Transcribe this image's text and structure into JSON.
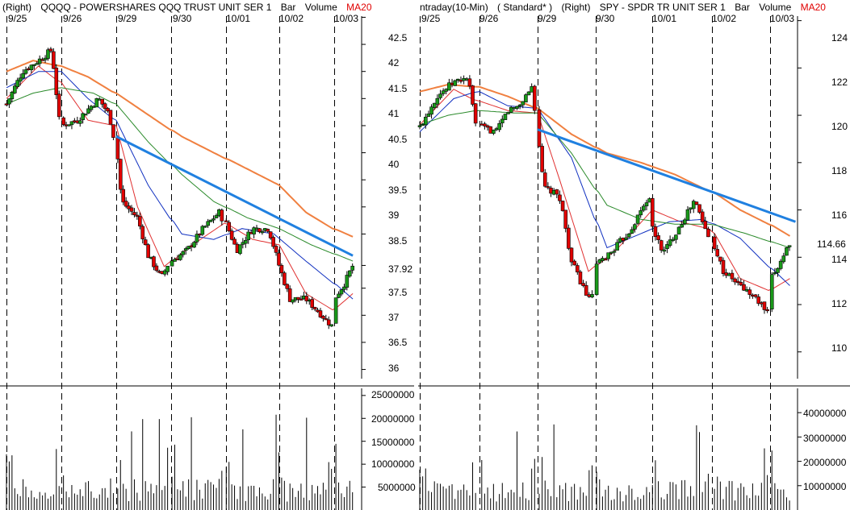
{
  "left_panel": {
    "header": {
      "right": "(Right)",
      "symbol": "QQQQ - POWERSHARES QQQ TRUST UNIT SER 1",
      "bar": "Bar",
      "volume": "Volume",
      "ma": "MA20"
    }
  },
  "right_panel": {
    "header": {
      "interval": "ntraday(10-Min)",
      "mode": "( Standard* )",
      "right": "(Right)",
      "symbol": "SPY - SPDR TR UNIT SER 1",
      "bar": "Bar",
      "volume": "Volume",
      "ma": "MA20"
    }
  },
  "colors": {
    "up_candle": "#1a9a1a",
    "down_candle": "#e00000",
    "ma_orange": "#f08040",
    "ma_green": "#2a8a2a",
    "ma_blue": "#1030c0",
    "ma_red": "#e03030",
    "trendline": "#2080e0",
    "grid": "#000000"
  },
  "chart_data": [
    {
      "type": "line",
      "title": "QQQQ - POWERSHARES QQQ TRUST UNIT SER 1",
      "chart_style": "candlestick",
      "interval": "10-min",
      "days": [
        "9/25",
        "9/26",
        "9/29",
        "9/30",
        "10/01",
        "10/02",
        "10/03"
      ],
      "ylim": [
        35.8,
        42.7
      ],
      "yticks": [
        42.5,
        42.0,
        41.5,
        41.0,
        40.5,
        40.0,
        39.5,
        39.0,
        38.5,
        37.92,
        37.5,
        37.0,
        36.5,
        36.0
      ],
      "last_price": 37.92,
      "close_path": [
        {
          "x": 0.0,
          "y": 40.9
        },
        {
          "x": 0.3,
          "y": 41.5
        },
        {
          "x": 0.6,
          "y": 41.7
        },
        {
          "x": 0.85,
          "y": 41.9
        },
        {
          "x": 1.0,
          "y": 40.5
        },
        {
          "x": 1.3,
          "y": 40.6
        },
        {
          "x": 1.5,
          "y": 40.8
        },
        {
          "x": 1.7,
          "y": 41.0
        },
        {
          "x": 1.9,
          "y": 40.7
        },
        {
          "x": 2.0,
          "y": 40.2
        },
        {
          "x": 2.1,
          "y": 39.1
        },
        {
          "x": 2.4,
          "y": 38.8
        },
        {
          "x": 2.6,
          "y": 38.1
        },
        {
          "x": 2.85,
          "y": 37.7
        },
        {
          "x": 3.0,
          "y": 38.0
        },
        {
          "x": 3.3,
          "y": 38.2
        },
        {
          "x": 3.6,
          "y": 38.6
        },
        {
          "x": 3.9,
          "y": 38.9
        },
        {
          "x": 4.0,
          "y": 38.7
        },
        {
          "x": 4.2,
          "y": 38.2
        },
        {
          "x": 4.5,
          "y": 38.6
        },
        {
          "x": 4.8,
          "y": 38.6
        },
        {
          "x": 5.0,
          "y": 37.9
        },
        {
          "x": 5.2,
          "y": 37.3
        },
        {
          "x": 5.5,
          "y": 37.3
        },
        {
          "x": 5.8,
          "y": 37.0
        },
        {
          "x": 5.99,
          "y": 36.8
        },
        {
          "x": 6.0,
          "y": 37.3
        },
        {
          "x": 6.2,
          "y": 37.6
        },
        {
          "x": 6.35,
          "y": 37.92
        }
      ],
      "moving_averages": [
        {
          "name": "MA20",
          "color": "#e03030",
          "points": [
            {
              "x": 0.0,
              "y": 41.0
            },
            {
              "x": 0.6,
              "y": 41.6
            },
            {
              "x": 1.0,
              "y": 41.3
            },
            {
              "x": 1.5,
              "y": 40.6
            },
            {
              "x": 2.0,
              "y": 40.5
            },
            {
              "x": 2.4,
              "y": 39.0
            },
            {
              "x": 2.9,
              "y": 37.9
            },
            {
              "x": 3.4,
              "y": 38.3
            },
            {
              "x": 4.0,
              "y": 38.7
            },
            {
              "x": 4.5,
              "y": 38.4
            },
            {
              "x": 5.0,
              "y": 38.3
            },
            {
              "x": 5.5,
              "y": 37.4
            },
            {
              "x": 6.0,
              "y": 37.1
            },
            {
              "x": 6.35,
              "y": 37.4
            }
          ]
        },
        {
          "color": "#1030c0",
          "points": [
            {
              "x": 0.0,
              "y": 41.2
            },
            {
              "x": 0.6,
              "y": 41.5
            },
            {
              "x": 1.0,
              "y": 41.5
            },
            {
              "x": 1.5,
              "y": 41.0
            },
            {
              "x": 2.0,
              "y": 40.6
            },
            {
              "x": 2.6,
              "y": 39.4
            },
            {
              "x": 3.2,
              "y": 38.5
            },
            {
              "x": 3.8,
              "y": 38.4
            },
            {
              "x": 4.3,
              "y": 38.6
            },
            {
              "x": 4.9,
              "y": 38.5
            },
            {
              "x": 5.5,
              "y": 38.0
            },
            {
              "x": 6.0,
              "y": 37.6
            },
            {
              "x": 6.35,
              "y": 37.3
            }
          ]
        },
        {
          "color": "#2a8a2a",
          "points": [
            {
              "x": 0.0,
              "y": 40.9
            },
            {
              "x": 0.5,
              "y": 41.1
            },
            {
              "x": 1.0,
              "y": 41.2
            },
            {
              "x": 1.6,
              "y": 41.1
            },
            {
              "x": 2.0,
              "y": 40.9
            },
            {
              "x": 2.6,
              "y": 40.2
            },
            {
              "x": 3.2,
              "y": 39.6
            },
            {
              "x": 3.8,
              "y": 39.1
            },
            {
              "x": 4.4,
              "y": 38.8
            },
            {
              "x": 5.0,
              "y": 38.6
            },
            {
              "x": 5.6,
              "y": 38.3
            },
            {
              "x": 6.35,
              "y": 38.0
            }
          ]
        },
        {
          "color": "#f08040",
          "points": [
            {
              "x": 0.0,
              "y": 41.5
            },
            {
              "x": 0.5,
              "y": 41.7
            },
            {
              "x": 1.0,
              "y": 41.6
            },
            {
              "x": 1.5,
              "y": 41.4
            },
            {
              "x": 2.0,
              "y": 41.1
            },
            {
              "x": 2.6,
              "y": 40.7
            },
            {
              "x": 3.2,
              "y": 40.3
            },
            {
              "x": 3.8,
              "y": 40.0
            },
            {
              "x": 4.4,
              "y": 39.7
            },
            {
              "x": 5.0,
              "y": 39.4
            },
            {
              "x": 5.5,
              "y": 38.9
            },
            {
              "x": 6.0,
              "y": 38.6
            },
            {
              "x": 6.35,
              "y": 38.45
            }
          ]
        }
      ],
      "trendline": {
        "from": {
          "x": 2.0,
          "y": 40.3
        },
        "to": {
          "x": 6.35,
          "y": 38.1
        }
      },
      "volume": {
        "ylim": [
          0,
          25500000
        ],
        "yticks": [
          25000000,
          20000000,
          15000000,
          10000000,
          5000000
        ],
        "peak": 22500000
      }
    },
    {
      "type": "line",
      "title": "SPY - SPDR TR UNIT SER 1",
      "chart_style": "candlestick",
      "interval": "Intraday (10-Min)",
      "days": [
        "9/25",
        "9/26",
        "9/29",
        "9/30",
        "10/01",
        "10/02",
        "10/03"
      ],
      "ylim": [
        108.8,
        124.6
      ],
      "yticks": [
        124,
        122,
        120,
        118,
        116,
        114,
        112,
        110
      ],
      "last_price": 114.66,
      "close_path": [
        {
          "x": 0.0,
          "y": 119.5
        },
        {
          "x": 0.3,
          "y": 120.8
        },
        {
          "x": 0.6,
          "y": 121.4
        },
        {
          "x": 0.85,
          "y": 121.6
        },
        {
          "x": 1.0,
          "y": 119.5
        },
        {
          "x": 1.3,
          "y": 119.3
        },
        {
          "x": 1.5,
          "y": 120.2
        },
        {
          "x": 1.7,
          "y": 120.4
        },
        {
          "x": 1.95,
          "y": 121.3
        },
        {
          "x": 2.0,
          "y": 119.4
        },
        {
          "x": 2.1,
          "y": 117.0
        },
        {
          "x": 2.4,
          "y": 116.5
        },
        {
          "x": 2.6,
          "y": 113.8
        },
        {
          "x": 2.95,
          "y": 112.0
        },
        {
          "x": 3.0,
          "y": 113.6
        },
        {
          "x": 3.3,
          "y": 114.3
        },
        {
          "x": 3.6,
          "y": 115.1
        },
        {
          "x": 3.95,
          "y": 116.6
        },
        {
          "x": 4.0,
          "y": 115.2
        },
        {
          "x": 4.2,
          "y": 114.2
        },
        {
          "x": 4.5,
          "y": 115.4
        },
        {
          "x": 4.75,
          "y": 116.4
        },
        {
          "x": 5.0,
          "y": 114.8
        },
        {
          "x": 5.2,
          "y": 113.4
        },
        {
          "x": 5.5,
          "y": 112.8
        },
        {
          "x": 5.8,
          "y": 112.2
        },
        {
          "x": 5.99,
          "y": 111.6
        },
        {
          "x": 6.0,
          "y": 113.0
        },
        {
          "x": 6.2,
          "y": 113.9
        },
        {
          "x": 6.35,
          "y": 114.66
        }
      ],
      "moving_averages": [
        {
          "name": "MA20",
          "color": "#e03030",
          "points": [
            {
              "x": 0.0,
              "y": 119.6
            },
            {
              "x": 0.6,
              "y": 121.1
            },
            {
              "x": 1.0,
              "y": 120.6
            },
            {
              "x": 1.5,
              "y": 120.2
            },
            {
              "x": 2.0,
              "y": 120.1
            },
            {
              "x": 2.4,
              "y": 117.2
            },
            {
              "x": 2.9,
              "y": 113.4
            },
            {
              "x": 3.4,
              "y": 114.4
            },
            {
              "x": 4.0,
              "y": 116.0
            },
            {
              "x": 4.5,
              "y": 115.5
            },
            {
              "x": 5.0,
              "y": 115.2
            },
            {
              "x": 5.5,
              "y": 113.1
            },
            {
              "x": 6.0,
              "y": 112.6
            },
            {
              "x": 6.35,
              "y": 113.1
            }
          ]
        },
        {
          "color": "#1030c0",
          "points": [
            {
              "x": 0.0,
              "y": 119.3
            },
            {
              "x": 0.6,
              "y": 120.7
            },
            {
              "x": 1.0,
              "y": 121.0
            },
            {
              "x": 1.5,
              "y": 120.4
            },
            {
              "x": 2.0,
              "y": 120.3
            },
            {
              "x": 2.6,
              "y": 118.2
            },
            {
              "x": 3.2,
              "y": 114.4
            },
            {
              "x": 3.8,
              "y": 115.0
            },
            {
              "x": 4.3,
              "y": 115.5
            },
            {
              "x": 4.9,
              "y": 115.6
            },
            {
              "x": 5.5,
              "y": 114.8
            },
            {
              "x": 6.0,
              "y": 113.6
            },
            {
              "x": 6.35,
              "y": 112.8
            }
          ]
        },
        {
          "color": "#2a8a2a",
          "points": [
            {
              "x": 0.0,
              "y": 119.6
            },
            {
              "x": 0.5,
              "y": 120.0
            },
            {
              "x": 1.0,
              "y": 120.2
            },
            {
              "x": 1.6,
              "y": 120.1
            },
            {
              "x": 2.0,
              "y": 120.1
            },
            {
              "x": 2.6,
              "y": 118.4
            },
            {
              "x": 3.2,
              "y": 116.2
            },
            {
              "x": 3.8,
              "y": 115.6
            },
            {
              "x": 4.4,
              "y": 115.4
            },
            {
              "x": 5.0,
              "y": 115.4
            },
            {
              "x": 5.6,
              "y": 115.0
            },
            {
              "x": 6.35,
              "y": 114.4
            }
          ]
        },
        {
          "color": "#f08040",
          "points": [
            {
              "x": 0.0,
              "y": 121.0
            },
            {
              "x": 0.5,
              "y": 121.3
            },
            {
              "x": 1.0,
              "y": 121.2
            },
            {
              "x": 1.5,
              "y": 120.8
            },
            {
              "x": 2.0,
              "y": 120.3
            },
            {
              "x": 2.6,
              "y": 119.2
            },
            {
              "x": 3.2,
              "y": 118.4
            },
            {
              "x": 3.8,
              "y": 118.0
            },
            {
              "x": 4.4,
              "y": 117.5
            },
            {
              "x": 5.0,
              "y": 116.8
            },
            {
              "x": 5.5,
              "y": 116.0
            },
            {
              "x": 6.0,
              "y": 115.4
            },
            {
              "x": 6.35,
              "y": 114.9
            }
          ]
        }
      ],
      "trendline": {
        "from": {
          "x": 2.0,
          "y": 119.4
        },
        "to": {
          "x": 6.45,
          "y": 115.5
        }
      },
      "volume": {
        "ylim": [
          0,
          48000000
        ],
        "yticks": [
          40000000,
          30000000,
          20000000,
          10000000
        ],
        "peak": 42000000
      }
    }
  ]
}
